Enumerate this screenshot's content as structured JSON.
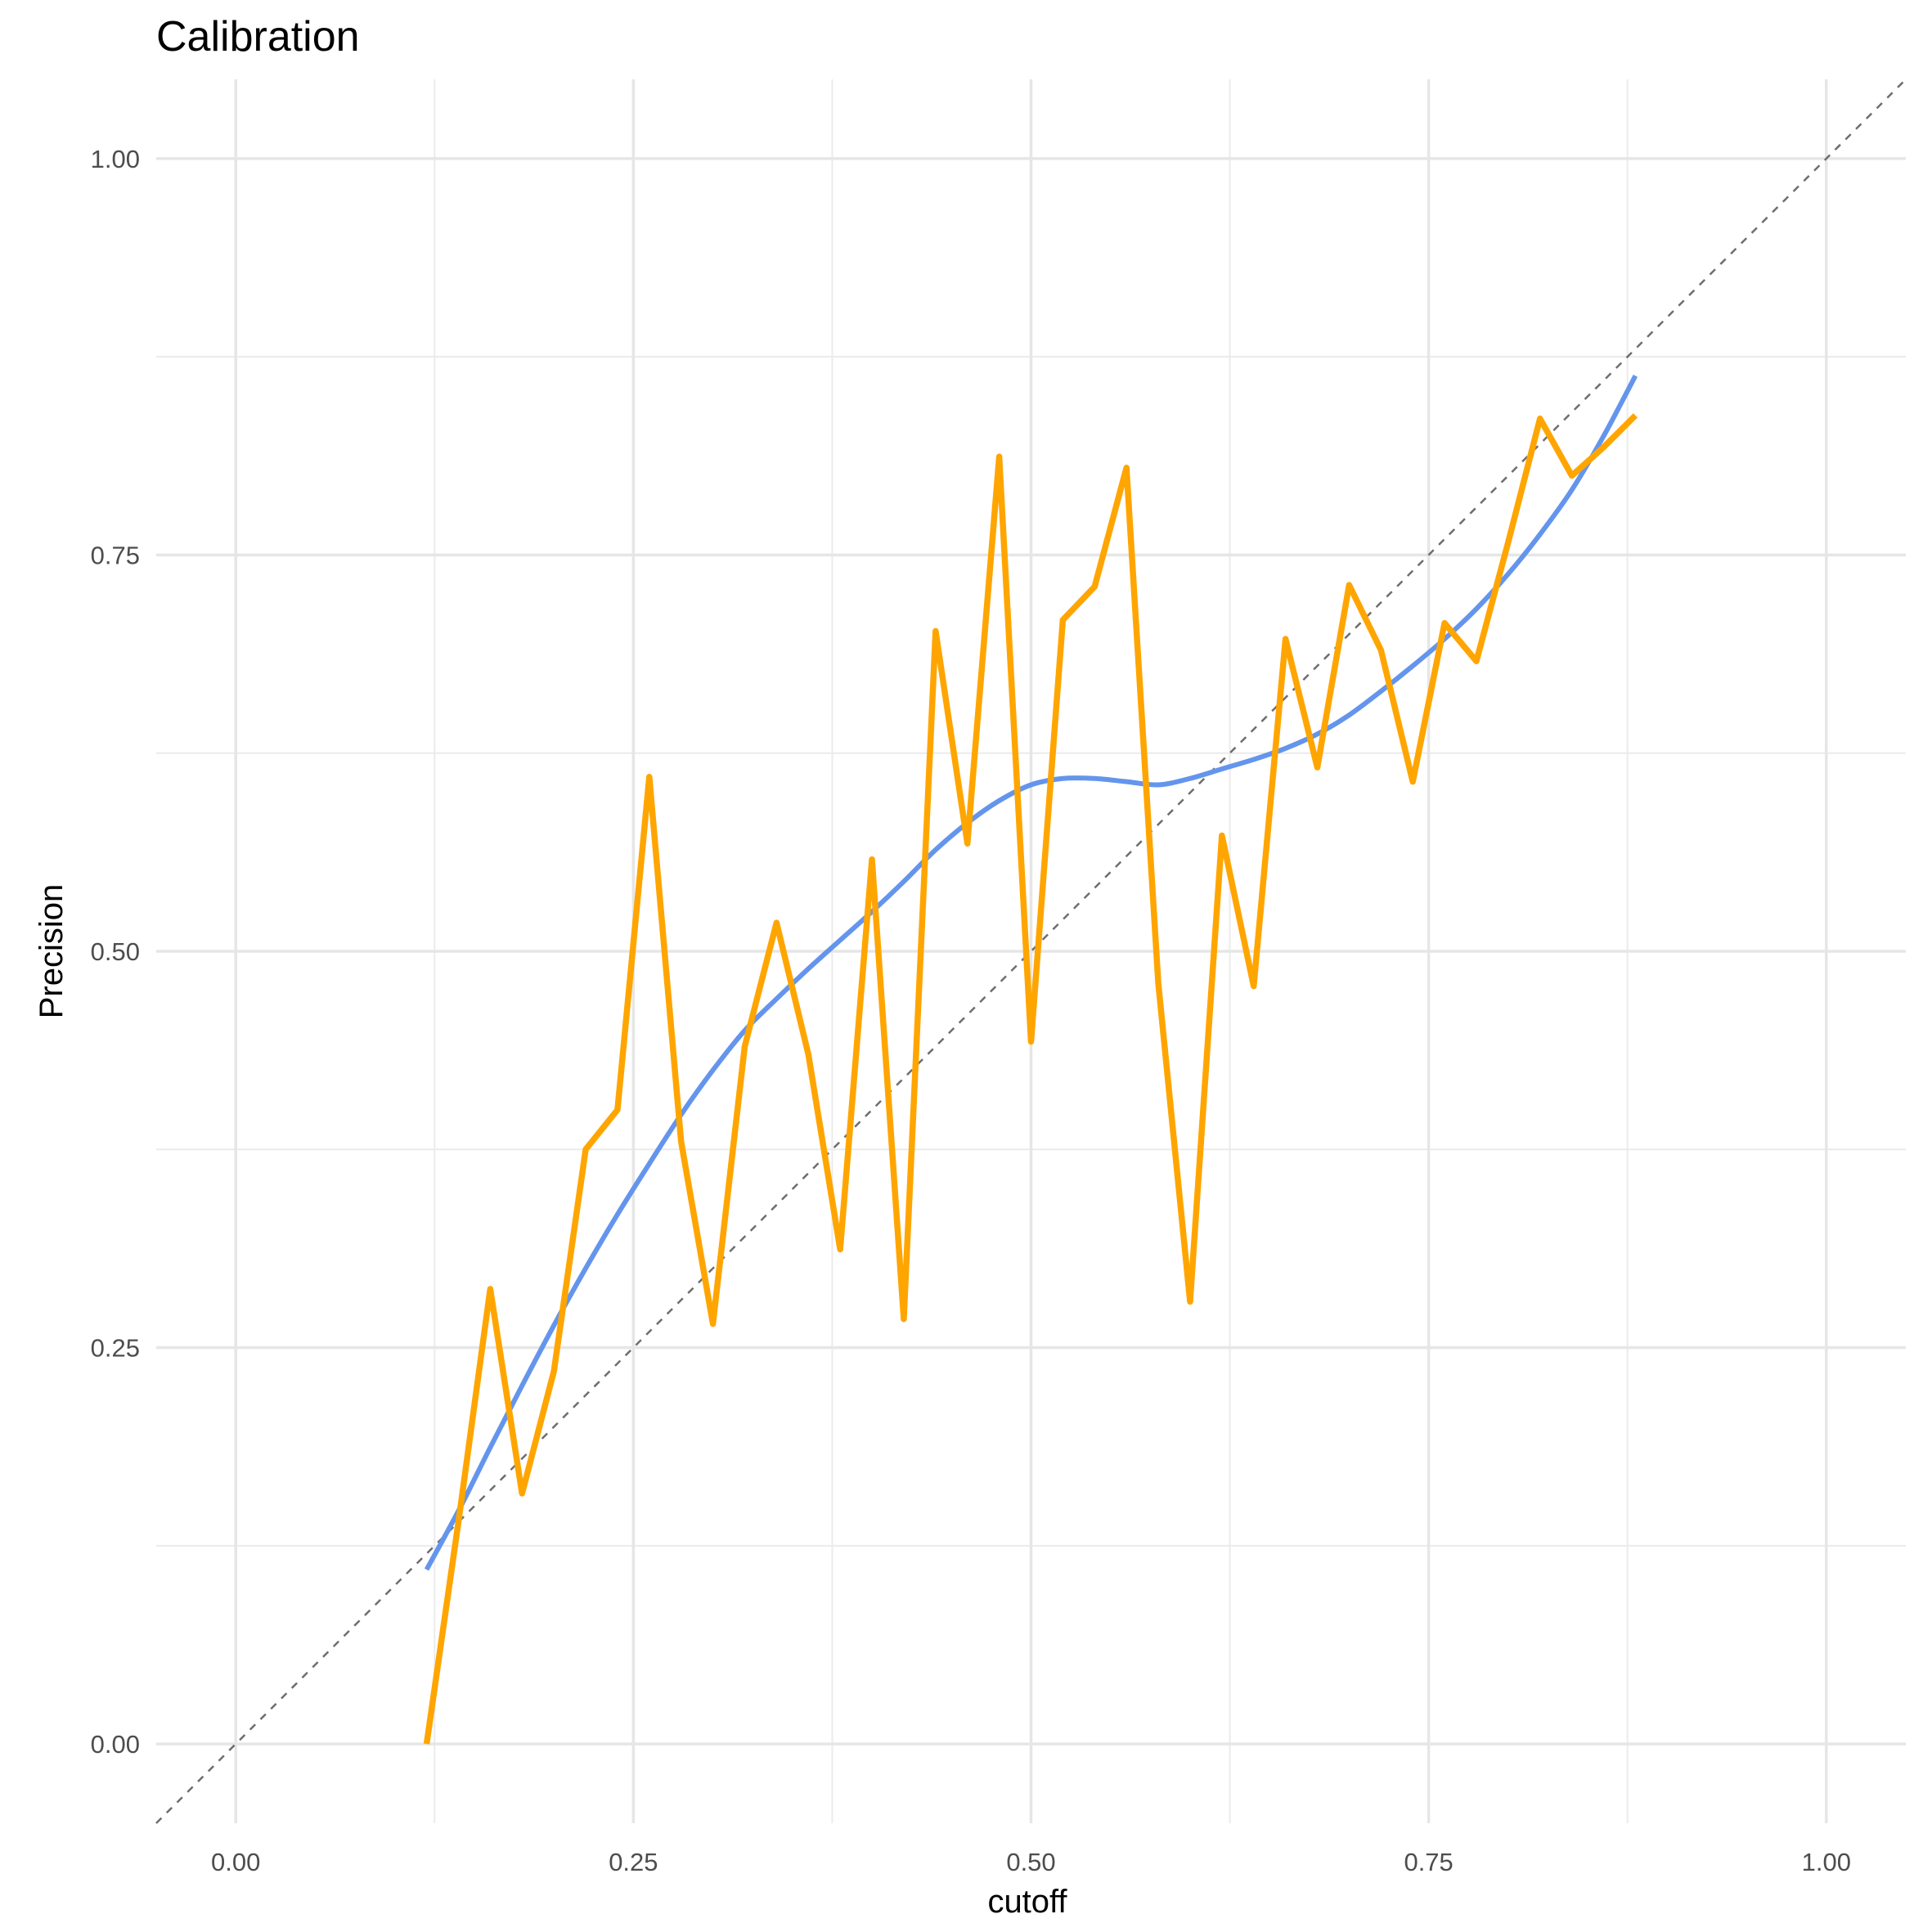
{
  "chart_data": {
    "type": "line",
    "title": "Calibration",
    "xlabel": "cutoff",
    "ylabel": "Precision",
    "xlim": [
      -0.05,
      1.05
    ],
    "ylim": [
      -0.05,
      1.05
    ],
    "x_ticks": [
      0,
      0.25,
      0.5,
      0.75,
      1
    ],
    "x_tick_labels": [
      "0.00",
      "0.25",
      "0.50",
      "0.75",
      "1.00"
    ],
    "y_ticks": [
      0,
      0.25,
      0.5,
      0.75,
      1
    ],
    "y_tick_labels": [
      "0.00",
      "0.25",
      "0.50",
      "0.75",
      "1.00"
    ],
    "grid": true,
    "reference_line": {
      "style": "dashed",
      "color": "#6e6e6e",
      "slope": 1,
      "intercept": 0
    },
    "series": [
      {
        "color": "#FFA500",
        "x": [
          0.12,
          0.14,
          0.16,
          0.18,
          0.2,
          0.22,
          0.24,
          0.26,
          0.28,
          0.3,
          0.32,
          0.34,
          0.36,
          0.38,
          0.4,
          0.42,
          0.44,
          0.46,
          0.48,
          0.5,
          0.52,
          0.54,
          0.56,
          0.58,
          0.6,
          0.62,
          0.64,
          0.66,
          0.68,
          0.7,
          0.72,
          0.74,
          0.76,
          0.78,
          0.8,
          0.82,
          0.84,
          0.86,
          0.88
        ],
        "y": [
          0.0,
          0.14,
          0.287,
          0.158,
          0.235,
          0.375,
          0.4,
          0.61,
          0.38,
          0.265,
          0.44,
          0.518,
          0.435,
          0.312,
          0.558,
          0.268,
          0.702,
          0.568,
          0.812,
          0.443,
          0.709,
          0.73,
          0.805,
          0.48,
          0.279,
          0.573,
          0.478,
          0.697,
          0.616,
          0.731,
          0.69,
          0.607,
          0.707,
          0.683,
          0.758,
          0.836,
          0.8,
          0.818,
          0.838
        ]
      },
      {
        "color": "#6495ED",
        "smoothed": true,
        "x": [
          0.12,
          0.14,
          0.16,
          0.18,
          0.2,
          0.22,
          0.24,
          0.26,
          0.28,
          0.3,
          0.32,
          0.34,
          0.36,
          0.38,
          0.4,
          0.42,
          0.44,
          0.46,
          0.48,
          0.5,
          0.52,
          0.54,
          0.56,
          0.58,
          0.6,
          0.62,
          0.64,
          0.66,
          0.68,
          0.7,
          0.72,
          0.74,
          0.76,
          0.78,
          0.8,
          0.82,
          0.84,
          0.86,
          0.88
        ],
        "y": [
          0.11,
          0.147,
          0.187,
          0.226,
          0.264,
          0.3,
          0.334,
          0.366,
          0.397,
          0.425,
          0.45,
          0.47,
          0.489,
          0.507,
          0.525,
          0.544,
          0.564,
          0.581,
          0.595,
          0.605,
          0.609,
          0.609,
          0.607,
          0.605,
          0.609,
          0.615,
          0.621,
          0.628,
          0.637,
          0.649,
          0.664,
          0.68,
          0.697,
          0.716,
          0.738,
          0.763,
          0.791,
          0.825,
          0.863
        ]
      }
    ]
  }
}
